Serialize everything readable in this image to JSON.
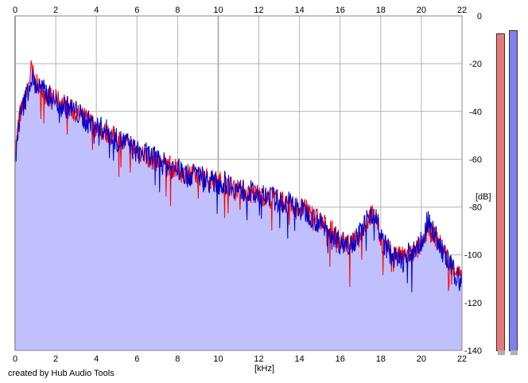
{
  "credit": "created by Hub Audio Tools",
  "colors": {
    "background": "#ffffff",
    "plot_bg": "#ffffff",
    "fill": "#c0c0ff",
    "left_channel": "#ff0000",
    "right_channel": "#0000cc",
    "grid": "#b4b4b4",
    "meter_left": "#e87878",
    "meter_right": "#8080f0"
  },
  "meters": {
    "left_level_db": -7,
    "right_level_db": -5
  },
  "chart_data": {
    "type": "area",
    "xlabel": "[kHz]",
    "ylabel": "[dB]",
    "xlim": [
      0,
      22
    ],
    "ylim": [
      -140,
      0
    ],
    "x_ticks": [
      "0",
      "2",
      "4",
      "6",
      "8",
      "10",
      "12",
      "14",
      "16",
      "18",
      "20",
      "22"
    ],
    "y_ticks": [
      "0",
      "-20",
      "-40",
      "-60",
      "-80",
      "-100",
      "-120",
      "-140"
    ],
    "grid": true,
    "series": [
      {
        "color": "red",
        "x": [
          0,
          0.2,
          0.5,
          0.8,
          1.0,
          1.5,
          2,
          2.5,
          3,
          3.5,
          4,
          4.5,
          5,
          5.5,
          6,
          6.5,
          7,
          7.5,
          8,
          8.5,
          9,
          9.5,
          10,
          10.5,
          11,
          11.5,
          12,
          12.5,
          13,
          13.5,
          14,
          14.5,
          15,
          15.5,
          16,
          16.5,
          17,
          17.2,
          17.5,
          17.8,
          18,
          18.5,
          19,
          19.5,
          20,
          20.3,
          20.6,
          21,
          21.5,
          22
        ],
        "values": [
          -58,
          -42,
          -36,
          -22,
          -28,
          -33,
          -35,
          -37,
          -41,
          -43,
          -47,
          -49,
          -51,
          -54,
          -56,
          -59,
          -61,
          -62,
          -65,
          -66,
          -67,
          -68,
          -69,
          -71,
          -72,
          -74,
          -75,
          -76,
          -77,
          -79,
          -80,
          -82,
          -86,
          -89,
          -94,
          -96,
          -92,
          -88,
          -83,
          -85,
          -94,
          -99,
          -101,
          -100,
          -96,
          -88,
          -91,
          -97,
          -104,
          -110
        ]
      },
      {
        "color": "blue",
        "x": [
          0,
          0.2,
          0.5,
          0.8,
          1.0,
          1.5,
          2,
          2.5,
          3,
          3.5,
          4,
          4.5,
          5,
          5.5,
          6,
          6.5,
          7,
          7.5,
          8,
          8.5,
          9,
          9.5,
          10,
          10.5,
          11,
          11.5,
          12,
          12.5,
          13,
          13.5,
          14,
          14.5,
          15,
          15.5,
          16,
          16.5,
          17,
          17.2,
          17.5,
          17.8,
          18,
          18.5,
          19,
          19.5,
          20,
          20.3,
          20.6,
          21,
          21.5,
          22
        ],
        "values": [
          -60,
          -44,
          -35,
          -26,
          -29,
          -32,
          -36,
          -38,
          -40,
          -44,
          -46,
          -48,
          -52,
          -53,
          -57,
          -58,
          -60,
          -63,
          -64,
          -67,
          -66,
          -69,
          -70,
          -70,
          -73,
          -73,
          -76,
          -75,
          -78,
          -78,
          -81,
          -83,
          -87,
          -90,
          -95,
          -95,
          -91,
          -87,
          -82,
          -84,
          -93,
          -100,
          -103,
          -99,
          -95,
          -86,
          -90,
          -98,
          -106,
          -112
        ]
      }
    ]
  }
}
